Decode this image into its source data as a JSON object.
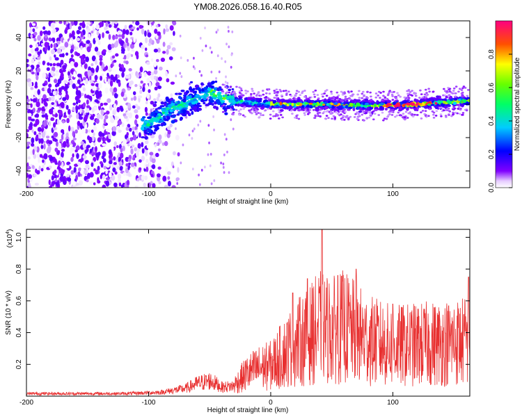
{
  "title": "YM08.2026.058.16.40.R05",
  "chart_data": [
    {
      "type": "heatmap",
      "xlabel": "Height of straight line (km)",
      "ylabel": "Frequency (Hz)",
      "xlim": [
        -200,
        163
      ],
      "ylim": [
        -50,
        50
      ],
      "xticks": [
        -200,
        -100,
        0,
        100
      ],
      "yticks": [
        -40,
        -20,
        0,
        20,
        40
      ],
      "colorbar": {
        "label": "Normalized spectral amplitude",
        "range": [
          0,
          1
        ],
        "ticks": [
          0.0,
          0.2,
          0.4,
          0.6,
          0.8
        ]
      },
      "grid": false,
      "ridge": [
        {
          "x": -100,
          "y": -12
        },
        {
          "x": -90,
          "y": -7
        },
        {
          "x": -80,
          "y": -2
        },
        {
          "x": -70,
          "y": 0
        },
        {
          "x": -60,
          "y": 4
        },
        {
          "x": -50,
          "y": 7
        },
        {
          "x": -40,
          "y": 4
        },
        {
          "x": -30,
          "y": 2
        },
        {
          "x": 0,
          "y": 0
        },
        {
          "x": 40,
          "y": 0
        },
        {
          "x": 80,
          "y": -1
        },
        {
          "x": 120,
          "y": 0
        },
        {
          "x": 160,
          "y": 2
        }
      ]
    },
    {
      "type": "line",
      "xlabel": "Height of straight line (km)",
      "ylabel": "SNR (10 * v/v)",
      "scale_label": "(x10",
      "scale_exp": "4",
      "scale_close": ")",
      "xlim": [
        -200,
        163
      ],
      "ylim": [
        0,
        1.05
      ],
      "xticks": [
        -200,
        -100,
        0,
        100
      ],
      "yticks": [
        0.2,
        0.4,
        0.6,
        0.8,
        1.0
      ],
      "series_color": "#e83030",
      "grid": false,
      "envelope": [
        {
          "x": -200,
          "y": 0.02
        },
        {
          "x": -120,
          "y": 0.02
        },
        {
          "x": -90,
          "y": 0.03
        },
        {
          "x": -70,
          "y": 0.06
        },
        {
          "x": -60,
          "y": 0.1
        },
        {
          "x": -50,
          "y": 0.12
        },
        {
          "x": -45,
          "y": 0.1
        },
        {
          "x": -40,
          "y": 0.07
        },
        {
          "x": -30,
          "y": 0.08
        },
        {
          "x": -20,
          "y": 0.16
        },
        {
          "x": -10,
          "y": 0.2
        },
        {
          "x": 0,
          "y": 0.22
        },
        {
          "x": 10,
          "y": 0.3
        },
        {
          "x": 20,
          "y": 0.38
        },
        {
          "x": 30,
          "y": 0.42
        },
        {
          "x": 40,
          "y": 0.5
        },
        {
          "x": 50,
          "y": 0.47
        },
        {
          "x": 60,
          "y": 0.5
        },
        {
          "x": 70,
          "y": 0.45
        },
        {
          "x": 80,
          "y": 0.4
        },
        {
          "x": 100,
          "y": 0.36
        },
        {
          "x": 120,
          "y": 0.37
        },
        {
          "x": 140,
          "y": 0.38
        },
        {
          "x": 163,
          "y": 0.4
        }
      ],
      "peaks": [
        {
          "x": 42,
          "y": 1.05
        },
        {
          "x": 30,
          "y": 0.74
        },
        {
          "x": 70,
          "y": 0.8
        },
        {
          "x": 55,
          "y": 0.76
        },
        {
          "x": 18,
          "y": 0.65
        },
        {
          "x": 162,
          "y": 0.75
        },
        {
          "x": 100,
          "y": 0.58
        }
      ]
    }
  ],
  "colors": {
    "colormap": [
      "#ffffff",
      "#7f00ff",
      "#0000ff",
      "#00e5ff",
      "#00ff00",
      "#ffff00",
      "#ff0000",
      "#ff0080"
    ]
  }
}
